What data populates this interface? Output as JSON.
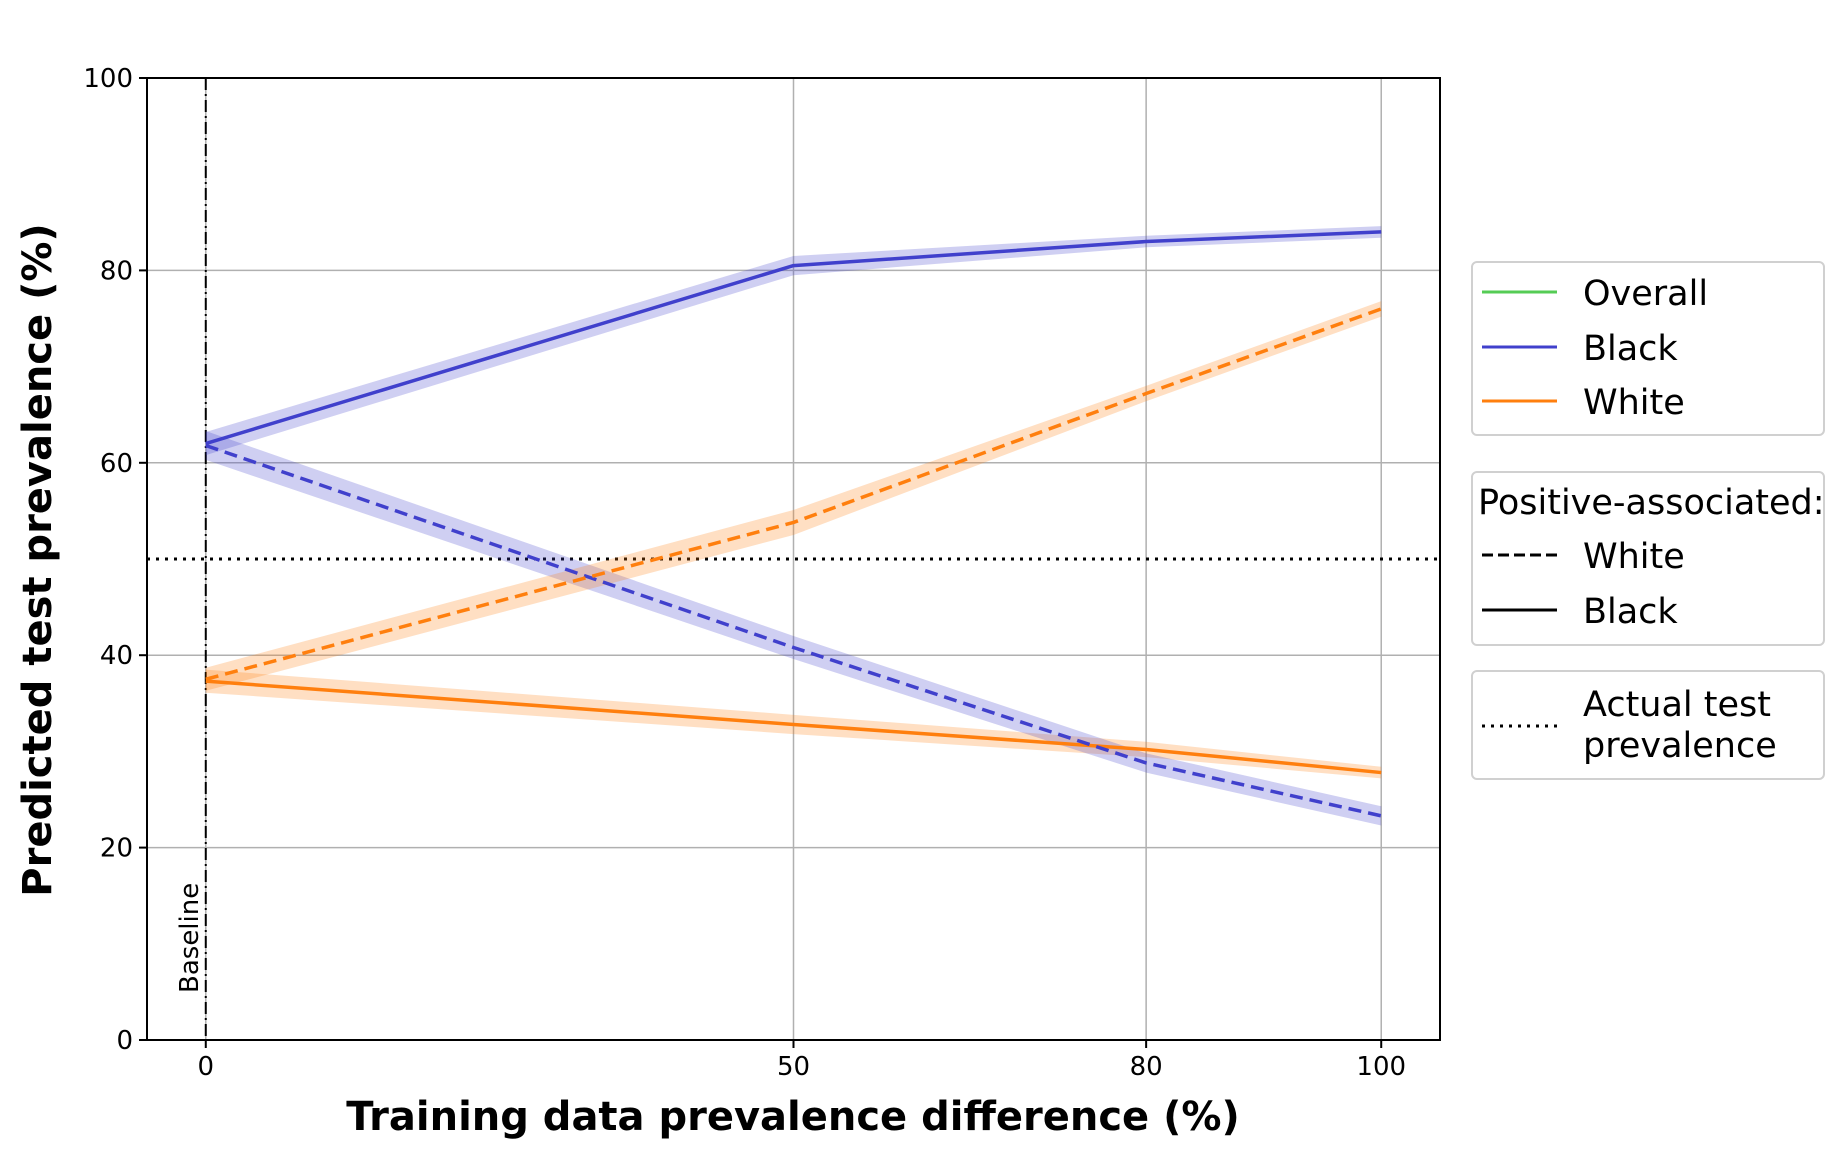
{
  "chart_data": {
    "type": "line",
    "xlabel": "Training data prevalence difference (%)",
    "ylabel": "Predicted test prevalence (%)",
    "xlim": [
      -5,
      105
    ],
    "ylim": [
      0,
      100
    ],
    "x_tick_positions": [
      0,
      50,
      80,
      100
    ],
    "x_tick_labels": [
      "0",
      "50",
      "80",
      "100"
    ],
    "y_ticks": [
      0,
      20,
      40,
      60,
      80,
      100
    ],
    "y_tick_labels": [
      "0",
      "20",
      "40",
      "60",
      "80",
      "100"
    ],
    "grid": true,
    "x": [
      0,
      50,
      80,
      100
    ],
    "series": [
      {
        "name": "Black",
        "group": "Black",
        "positive_associated": "Black",
        "color": "#4040cc",
        "values": [
          62,
          80.5,
          83,
          84
        ],
        "ci_halfwidth": [
          1.2,
          1.0,
          0.6,
          0.6
        ]
      },
      {
        "name": "White",
        "group": "White",
        "positive_associated": "Black",
        "color": "#ff7f0e",
        "values": [
          37.3,
          32.8,
          30.2,
          27.8
        ],
        "ci_halfwidth": [
          1.2,
          1.0,
          0.8,
          0.6
        ]
      },
      {
        "name": "Black",
        "group": "Black",
        "positive_associated": "White",
        "color": "#4040cc",
        "values": [
          61.8,
          40.8,
          28.8,
          23.3
        ],
        "ci_halfwidth": [
          1.5,
          1.2,
          1.0,
          1.0
        ]
      },
      {
        "name": "White",
        "group": "White",
        "positive_associated": "White",
        "color": "#ff7f0e",
        "values": [
          37.5,
          53.8,
          67.2,
          76
        ],
        "ci_halfwidth": [
          1.2,
          1.3,
          0.8,
          0.8
        ]
      }
    ],
    "actual_test_prevalence": 50,
    "baseline": {
      "x": 0,
      "label": "Baseline"
    },
    "legend_placement": "outside right",
    "legend_groups": {
      "entries": [
        {
          "label": "Overall",
          "color": "#55cc55"
        },
        {
          "label": "Black",
          "color": "#4040cc"
        },
        {
          "label": "White",
          "color": "#ff7f0e"
        }
      ]
    },
    "legend_positive": {
      "title": "Positive-associated:",
      "entries": [
        {
          "label": "White",
          "style": "dashed"
        },
        {
          "label": "Black",
          "style": "solid"
        }
      ]
    },
    "legend_actual": {
      "line1": "Actual test",
      "line2": "prevalence",
      "style": "dotted"
    }
  }
}
